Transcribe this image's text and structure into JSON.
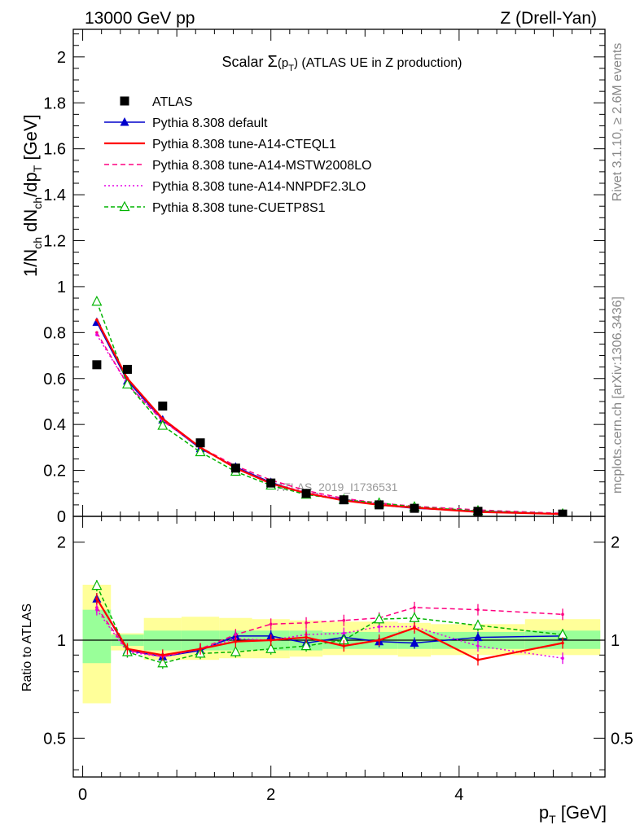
{
  "header": {
    "left": "13000 GeV pp",
    "right": "Z (Drell-Yan)"
  },
  "title": {
    "prefix": "Scalar ",
    "sigma": "Σ",
    "arg_open": "(p",
    "arg_sub": "T",
    "arg_close": ")",
    "suffix": " (ATLAS UE in Z production)"
  },
  "side_labels": {
    "rivet": "Rivet 3.1.10, ≥ 2.6M events",
    "mcplots": "mcplots.cern.ch [arXiv:1306.3436]"
  },
  "watermark": "ATLAS_2019_I1736531",
  "y_label": {
    "p1": "1/N",
    "s1": "ch",
    "p2": " dN",
    "s2": "ch",
    "p3": "/dp",
    "s3": "T",
    "p4": " [GeV]"
  },
  "ratio_label": "Ratio to ATLAS",
  "x_label": {
    "p1": "p",
    "s1": "T",
    "p2": " [GeV]"
  },
  "colors": {
    "data": "#000000",
    "default": "#0000cc",
    "cteql1": "#ff0000",
    "mstw": "#ff0080",
    "nnpdf": "#e600e6",
    "cuetp8s1": "#00b400",
    "band_inner": "#99ff99",
    "band_outer": "#ffff99"
  },
  "chart_data": {
    "type": "scatter",
    "x": [
      0.15,
      0.475,
      0.85,
      1.25,
      1.625,
      2.0,
      2.375,
      2.775,
      3.15,
      3.525,
      4.2,
      5.1
    ],
    "x_bins": [
      [
        0,
        0.3
      ],
      [
        0.3,
        0.65
      ],
      [
        0.65,
        1.05
      ],
      [
        1.05,
        1.45
      ],
      [
        1.45,
        1.8
      ],
      [
        1.8,
        2.2
      ],
      [
        2.2,
        2.55
      ],
      [
        2.55,
        2.95
      ],
      [
        2.95,
        3.35
      ],
      [
        3.35,
        3.7
      ],
      [
        3.7,
        4.7
      ],
      [
        4.7,
        5.5
      ]
    ],
    "xlim": [
      -0.1,
      5.55
    ],
    "xticks": [
      0,
      2,
      4
    ],
    "main": {
      "ylim": [
        0,
        2.12
      ],
      "yticks": [
        0,
        0.2,
        0.4,
        0.6,
        0.8,
        1,
        1.2,
        1.4,
        1.6,
        1.8,
        2
      ],
      "ytick_labels": [
        "0",
        "0.2",
        "0.4",
        "0.6",
        "0.8",
        "1",
        "1.2",
        "1.4",
        "1.6",
        "1.8",
        "2"
      ]
    },
    "ratio": {
      "ylim": [
        0.38,
        2.4
      ],
      "yscale": "log",
      "yticks": [
        0.5,
        1,
        2
      ],
      "ytick_labels": [
        "0.5",
        "1",
        "2"
      ],
      "band_inner": [
        [
          0.85,
          1.24
        ],
        [
          0.96,
          1.04
        ],
        [
          0.93,
          1.07
        ],
        [
          0.93,
          1.07
        ],
        [
          0.93,
          1.07
        ],
        [
          0.93,
          1.07
        ],
        [
          0.93,
          1.07
        ],
        [
          0.94,
          1.06
        ],
        [
          0.94,
          1.06
        ],
        [
          0.94,
          1.07
        ],
        [
          0.94,
          1.06
        ],
        [
          0.94,
          1.07
        ]
      ],
      "band_outer": [
        [
          0.64,
          1.48
        ],
        [
          0.93,
          1.05
        ],
        [
          0.87,
          1.17
        ],
        [
          0.87,
          1.18
        ],
        [
          0.88,
          1.17
        ],
        [
          0.88,
          1.16
        ],
        [
          0.89,
          1.15
        ],
        [
          0.9,
          1.14
        ],
        [
          0.9,
          1.14
        ],
        [
          0.89,
          1.13
        ],
        [
          0.9,
          1.12
        ],
        [
          0.9,
          1.16
        ]
      ]
    },
    "series": [
      {
        "name": "ATLAS",
        "key": "data",
        "marker": "square",
        "values": [
          0.66,
          0.64,
          0.48,
          0.32,
          0.21,
          0.145,
          0.1,
          0.072,
          0.05,
          0.035,
          0.022,
          0.01
        ],
        "ratio": []
      },
      {
        "name": "Pythia 8.308 default",
        "key": "default",
        "marker": "triangle",
        "dash": "",
        "values": [
          0.845,
          0.59,
          0.42,
          0.295,
          0.215,
          0.148,
          0.098,
          0.074,
          0.05,
          0.035,
          0.023,
          0.0105
        ],
        "ratio": [
          1.34,
          0.93,
          0.89,
          0.93,
          1.03,
          1.03,
          0.98,
          1.02,
          0.99,
          0.98,
          1.02,
          1.03
        ]
      },
      {
        "name": "Pythia 8.308 tune-A14-CTEQL1",
        "key": "cteql1",
        "marker": "",
        "dash": "",
        "values": [
          0.855,
          0.6,
          0.425,
          0.3,
          0.21,
          0.143,
          0.101,
          0.069,
          0.05,
          0.038,
          0.019,
          0.01
        ],
        "ratio": [
          1.34,
          0.94,
          0.9,
          0.94,
          0.99,
          1.0,
          1.02,
          0.96,
          1.0,
          1.09,
          0.87,
          0.98
        ]
      },
      {
        "name": "Pythia 8.308 tune-A14-MSTW2008LO",
        "key": "mstw",
        "marker": "",
        "dash": "6,4",
        "values": [
          0.8,
          0.575,
          0.415,
          0.3,
          0.22,
          0.158,
          0.112,
          0.078,
          0.058,
          0.044,
          0.028,
          0.013
        ],
        "ratio": [
          1.26,
          0.93,
          0.89,
          0.94,
          1.04,
          1.12,
          1.13,
          1.15,
          1.17,
          1.26,
          1.24,
          1.2
        ]
      },
      {
        "name": "Pythia 8.308 tune-A14-NNPDF2.3LO",
        "key": "nnpdf",
        "marker": "",
        "dash": "2,3",
        "values": [
          0.79,
          0.575,
          0.42,
          0.3,
          0.212,
          0.145,
          0.104,
          0.075,
          0.055,
          0.038,
          0.021,
          0.009
        ],
        "ratio": [
          1.24,
          0.92,
          0.89,
          0.94,
          1.01,
          1.0,
          1.04,
          1.05,
          1.1,
          1.1,
          0.96,
          0.88
        ]
      },
      {
        "name": "Pythia 8.308 tune-CUETP8S1",
        "key": "cuetp8s1",
        "marker": "triangle-open",
        "dash": "5,3",
        "values": [
          0.935,
          0.575,
          0.395,
          0.28,
          0.195,
          0.135,
          0.095,
          0.072,
          0.058,
          0.041,
          0.024,
          0.0105
        ],
        "ratio": [
          1.47,
          0.92,
          0.85,
          0.91,
          0.92,
          0.94,
          0.96,
          1.0,
          1.16,
          1.17,
          1.11,
          1.04
        ]
      }
    ]
  }
}
